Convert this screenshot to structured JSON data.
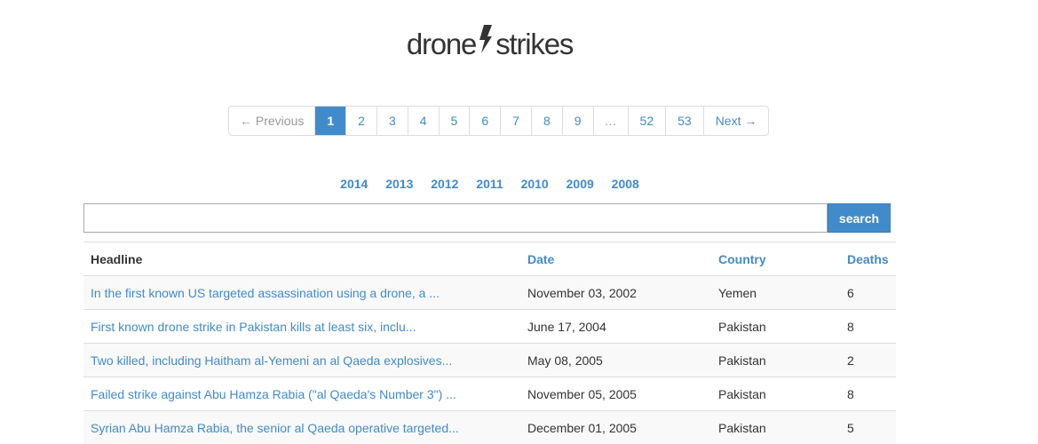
{
  "logo": {
    "left": "drone",
    "right": "strikes"
  },
  "pagination": {
    "prev": "← Previous",
    "pages": [
      "1",
      "2",
      "3",
      "4",
      "5",
      "6",
      "7",
      "8",
      "9"
    ],
    "ellipsis": "…",
    "last_pages": [
      "52",
      "53"
    ],
    "next": "Next →",
    "active_page": "1"
  },
  "years": [
    "2014",
    "2013",
    "2012",
    "2011",
    "2010",
    "2009",
    "2008"
  ],
  "search": {
    "value": "",
    "button_label": "search"
  },
  "table": {
    "headers": {
      "headline": "Headline",
      "date": "Date",
      "country": "Country",
      "deaths": "Deaths"
    },
    "rows": [
      {
        "headline": "In the first known US targeted assassination using a drone, a ...",
        "date": "November 03, 2002",
        "country": "Yemen",
        "deaths": "6"
      },
      {
        "headline": "First known drone strike in Pakistan kills at least six, inclu...",
        "date": "June 17, 2004",
        "country": "Pakistan",
        "deaths": "8"
      },
      {
        "headline": "Two killed, including Haitham al-Yemeni an al Qaeda explosives...",
        "date": "May 08, 2005",
        "country": "Pakistan",
        "deaths": "2"
      },
      {
        "headline": "Failed strike against Abu Hamza Rabia (\"al Qaeda's Number 3\") ...",
        "date": "November 05, 2005",
        "country": "Pakistan",
        "deaths": "8"
      },
      {
        "headline": "Syrian Abu Hamza Rabia, the senior al Qaeda operative targeted...",
        "date": "December 01, 2005",
        "country": "Pakistan",
        "deaths": "5"
      }
    ]
  },
  "colors": {
    "accent": "#428bca",
    "text": "#333333",
    "stripe": "#f9f9f9",
    "border": "#dddddd"
  }
}
